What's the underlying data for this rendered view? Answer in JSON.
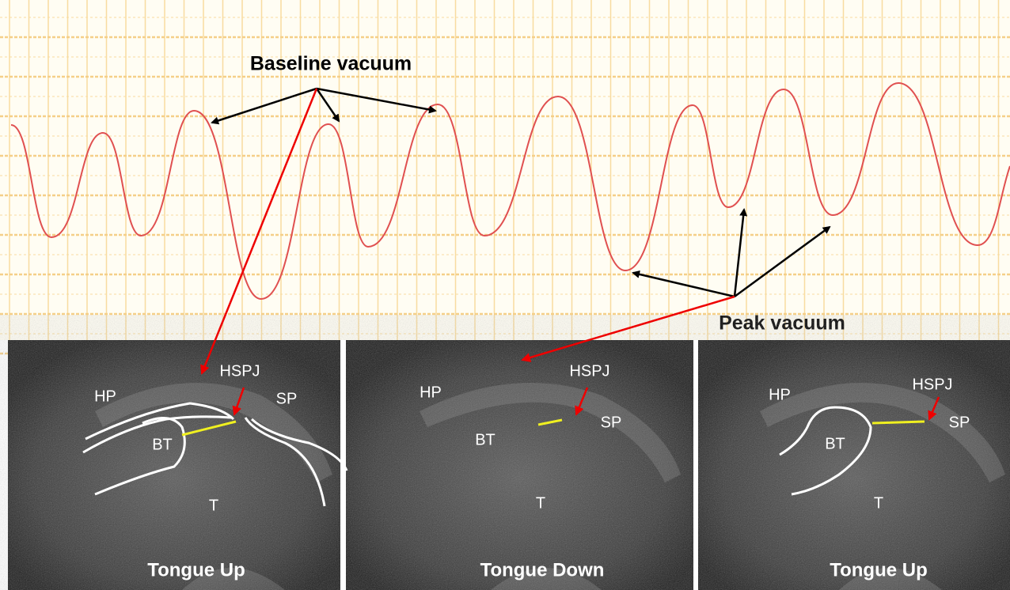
{
  "annotations": {
    "baseline": "Baseline vacuum",
    "peak": "Peak vacuum"
  },
  "panels": [
    {
      "caption": "Tongue Up",
      "labels": [
        "HP",
        "HSPJ",
        "SP",
        "BT",
        "T"
      ]
    },
    {
      "caption": "Tongue Down",
      "labels": [
        "HP",
        "HSPJ",
        "SP",
        "BT",
        "T"
      ]
    },
    {
      "caption": "Tongue Up",
      "labels": [
        "HP",
        "HSPJ",
        "SP",
        "BT",
        "T"
      ]
    }
  ]
}
